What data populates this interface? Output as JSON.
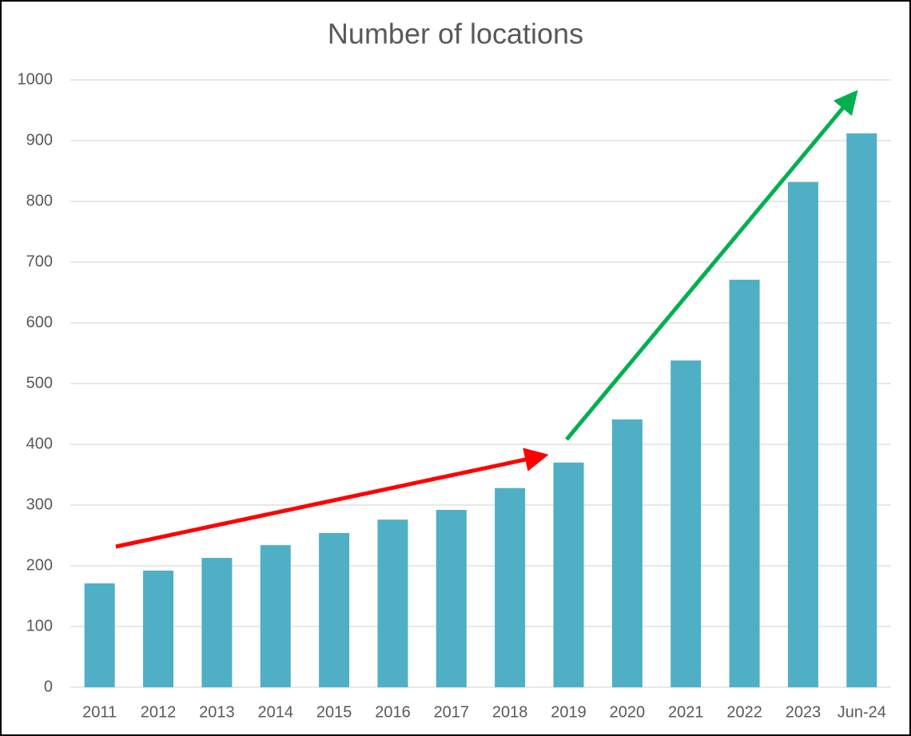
{
  "chart_data": {
    "type": "bar",
    "title": "Number of locations",
    "categories": [
      "2011",
      "2012",
      "2013",
      "2014",
      "2015",
      "2016",
      "2017",
      "2018",
      "2019",
      "2020",
      "2021",
      "2022",
      "2023",
      "Jun-24"
    ],
    "values": [
      171,
      192,
      213,
      234,
      254,
      276,
      292,
      328,
      370,
      441,
      538,
      671,
      832,
      912
    ],
    "color": "#4fafc4",
    "ylim": [
      0,
      1000
    ],
    "yticks": [
      0,
      100,
      200,
      300,
      400,
      500,
      600,
      700,
      800,
      900,
      1000
    ],
    "grid": true
  }
}
